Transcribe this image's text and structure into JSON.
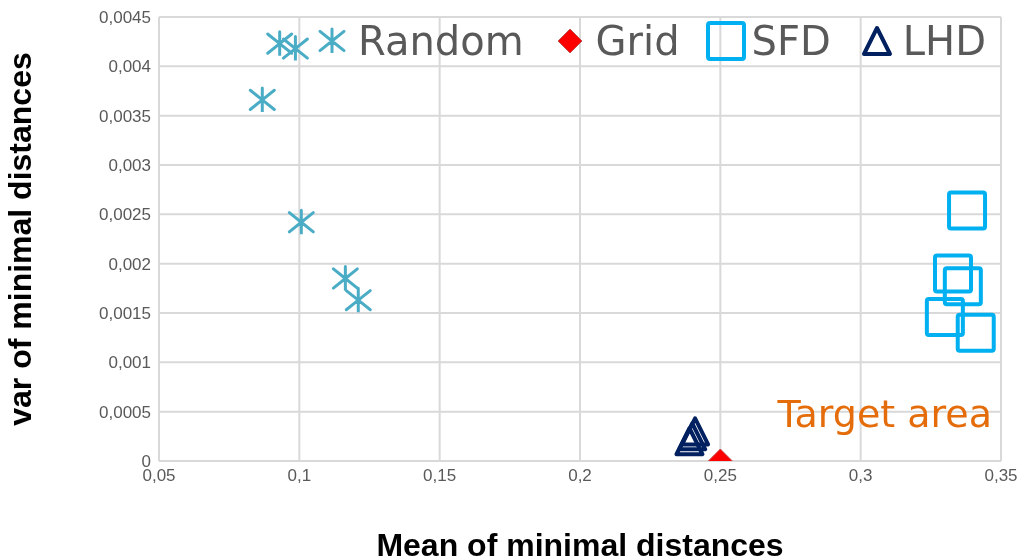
{
  "chart_data": {
    "type": "scatter",
    "xlabel": "Mean of minimal distances",
    "ylabel": "var of minimal distances",
    "annotations": [
      "Target area"
    ],
    "xlim": [
      0.05,
      0.35
    ],
    "xticks": [
      {
        "value": 0.05,
        "label": "0,05"
      },
      {
        "value": 0.1,
        "label": "0,1"
      },
      {
        "value": 0.15,
        "label": "0,15"
      },
      {
        "value": 0.2,
        "label": "0,2"
      },
      {
        "value": 0.25,
        "label": "0,25"
      },
      {
        "value": 0.3,
        "label": "0,3"
      },
      {
        "value": 0.35,
        "label": "0,35"
      }
    ],
    "ylim": [
      0,
      0.0045
    ],
    "yticks": [
      0,
      {
        "value": 0.0005,
        "label": "0,0005"
      },
      {
        "value": 0.001,
        "label": "0,001"
      },
      {
        "value": 0.0015,
        "label": "0,0015"
      },
      {
        "value": 0.002,
        "label": "0,002"
      },
      {
        "value": 0.0025,
        "label": "0,0025"
      },
      {
        "value": 0.003,
        "label": "0,003"
      },
      {
        "value": 0.0035,
        "label": "0,0035"
      },
      {
        "value": 0.004,
        "label": "0,004"
      },
      {
        "value": 0.0045,
        "label": "0,0045"
      }
    ],
    "grid": true,
    "legend": "top",
    "series": [
      {
        "name": "Random",
        "color": "#4bacc6",
        "marker": "cross",
        "x": [
          0.093,
          0.0986,
          0.0868,
          0.1007,
          0.1164,
          0.121
        ],
        "values": [
          0.00423,
          0.00418,
          0.00366,
          0.00242,
          0.00185,
          0.00163
        ]
      },
      {
        "name": "Grid",
        "color": "#ff0000",
        "marker": "diamond",
        "x": [
          0.25
        ],
        "values": [
          0
        ]
      },
      {
        "name": "SFD",
        "color": "#00b0f0",
        "marker": "square",
        "x": [
          0.3379,
          0.3329,
          0.3364,
          0.33,
          0.341
        ],
        "values": [
          0.00254,
          0.0019,
          0.00177,
          0.00146,
          0.0013
        ]
      },
      {
        "name": "LHD",
        "color": "#002060",
        "marker": "triangle",
        "x": [
          0.239,
          0.24,
          0.241
        ],
        "values": [
          0.0002,
          0.00025,
          0.0003
        ]
      }
    ]
  }
}
